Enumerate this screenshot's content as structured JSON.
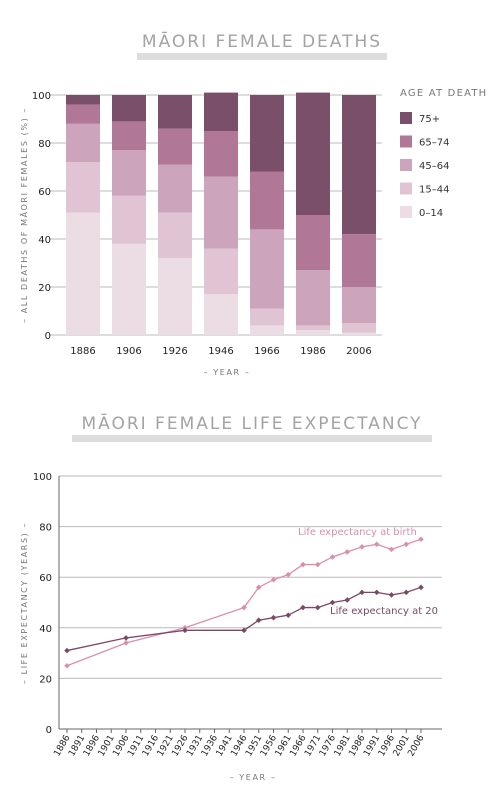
{
  "chart_data": [
    {
      "type": "bar",
      "stacked": true,
      "title": "MĀORI FEMALE DEATHS",
      "xlabel": "– YEAR –",
      "ylabel": "– ALL DEATHS OF MĀORI FEMALES (%) –",
      "ylim": [
        0,
        100
      ],
      "yticks": [
        "0",
        "20",
        "40",
        "60",
        "80",
        "100"
      ],
      "grid": true,
      "legend_title": "AGE AT DEATH",
      "legend_position": "right",
      "categories": [
        "1886",
        "1906",
        "1926",
        "1946",
        "1966",
        "1986",
        "2006"
      ],
      "series": [
        {
          "name": "0–14",
          "color": "#ecdce4",
          "values": [
            51,
            38,
            32,
            17,
            4,
            2,
            1
          ]
        },
        {
          "name": "15–44",
          "color": "#e0c4d3",
          "values": [
            21,
            20,
            19,
            19,
            7,
            2,
            4
          ]
        },
        {
          "name": "45–64",
          "color": "#cca4bb",
          "values": [
            16,
            19,
            20,
            30,
            33,
            23,
            15
          ]
        },
        {
          "name": "65–74",
          "color": "#b07896",
          "values": [
            8,
            12,
            15,
            19,
            24,
            23,
            22
          ]
        },
        {
          "name": "75+",
          "color": "#7a4f69",
          "values": [
            4,
            11,
            14,
            16,
            32,
            51,
            58
          ]
        }
      ]
    },
    {
      "type": "line",
      "title": "MĀORI FEMALE LIFE EXPECTANCY",
      "xlabel": "– YEAR –",
      "ylabel": "– LIFE EXPECTANCY (YEARS) –",
      "ylim": [
        0,
        100
      ],
      "yticks": [
        "0",
        "20",
        "40",
        "60",
        "80",
        "100"
      ],
      "grid": true,
      "x_ticks": [
        "1886",
        "1891",
        "1896",
        "1901",
        "1906",
        "1911",
        "1916",
        "1921",
        "1926",
        "1931",
        "1936",
        "1941",
        "1946",
        "1951",
        "1956",
        "1961",
        "1966",
        "1971",
        "1976",
        "1981",
        "1986",
        "1991",
        "1996",
        "2001",
        "2006"
      ],
      "series": [
        {
          "name": "Life expectancy at birth",
          "color": "#d98fad",
          "x": [
            1886,
            1906,
            1926,
            1946,
            1951,
            1956,
            1961,
            1966,
            1971,
            1976,
            1981,
            1986,
            1991,
            1996,
            2001,
            2006
          ],
          "y": [
            25,
            34,
            40,
            48,
            56,
            59,
            61,
            65,
            65,
            68,
            70,
            72,
            73,
            71,
            73,
            75
          ]
        },
        {
          "name": "Life expectancy at 20",
          "color": "#7a4a65",
          "x": [
            1886,
            1906,
            1926,
            1946,
            1951,
            1956,
            1961,
            1966,
            1971,
            1976,
            1981,
            1986,
            1991,
            1996,
            2001,
            2006
          ],
          "y": [
            31,
            36,
            39,
            39,
            43,
            44,
            45,
            48,
            48,
            50,
            51,
            54,
            54,
            53,
            54,
            56
          ]
        }
      ]
    }
  ]
}
